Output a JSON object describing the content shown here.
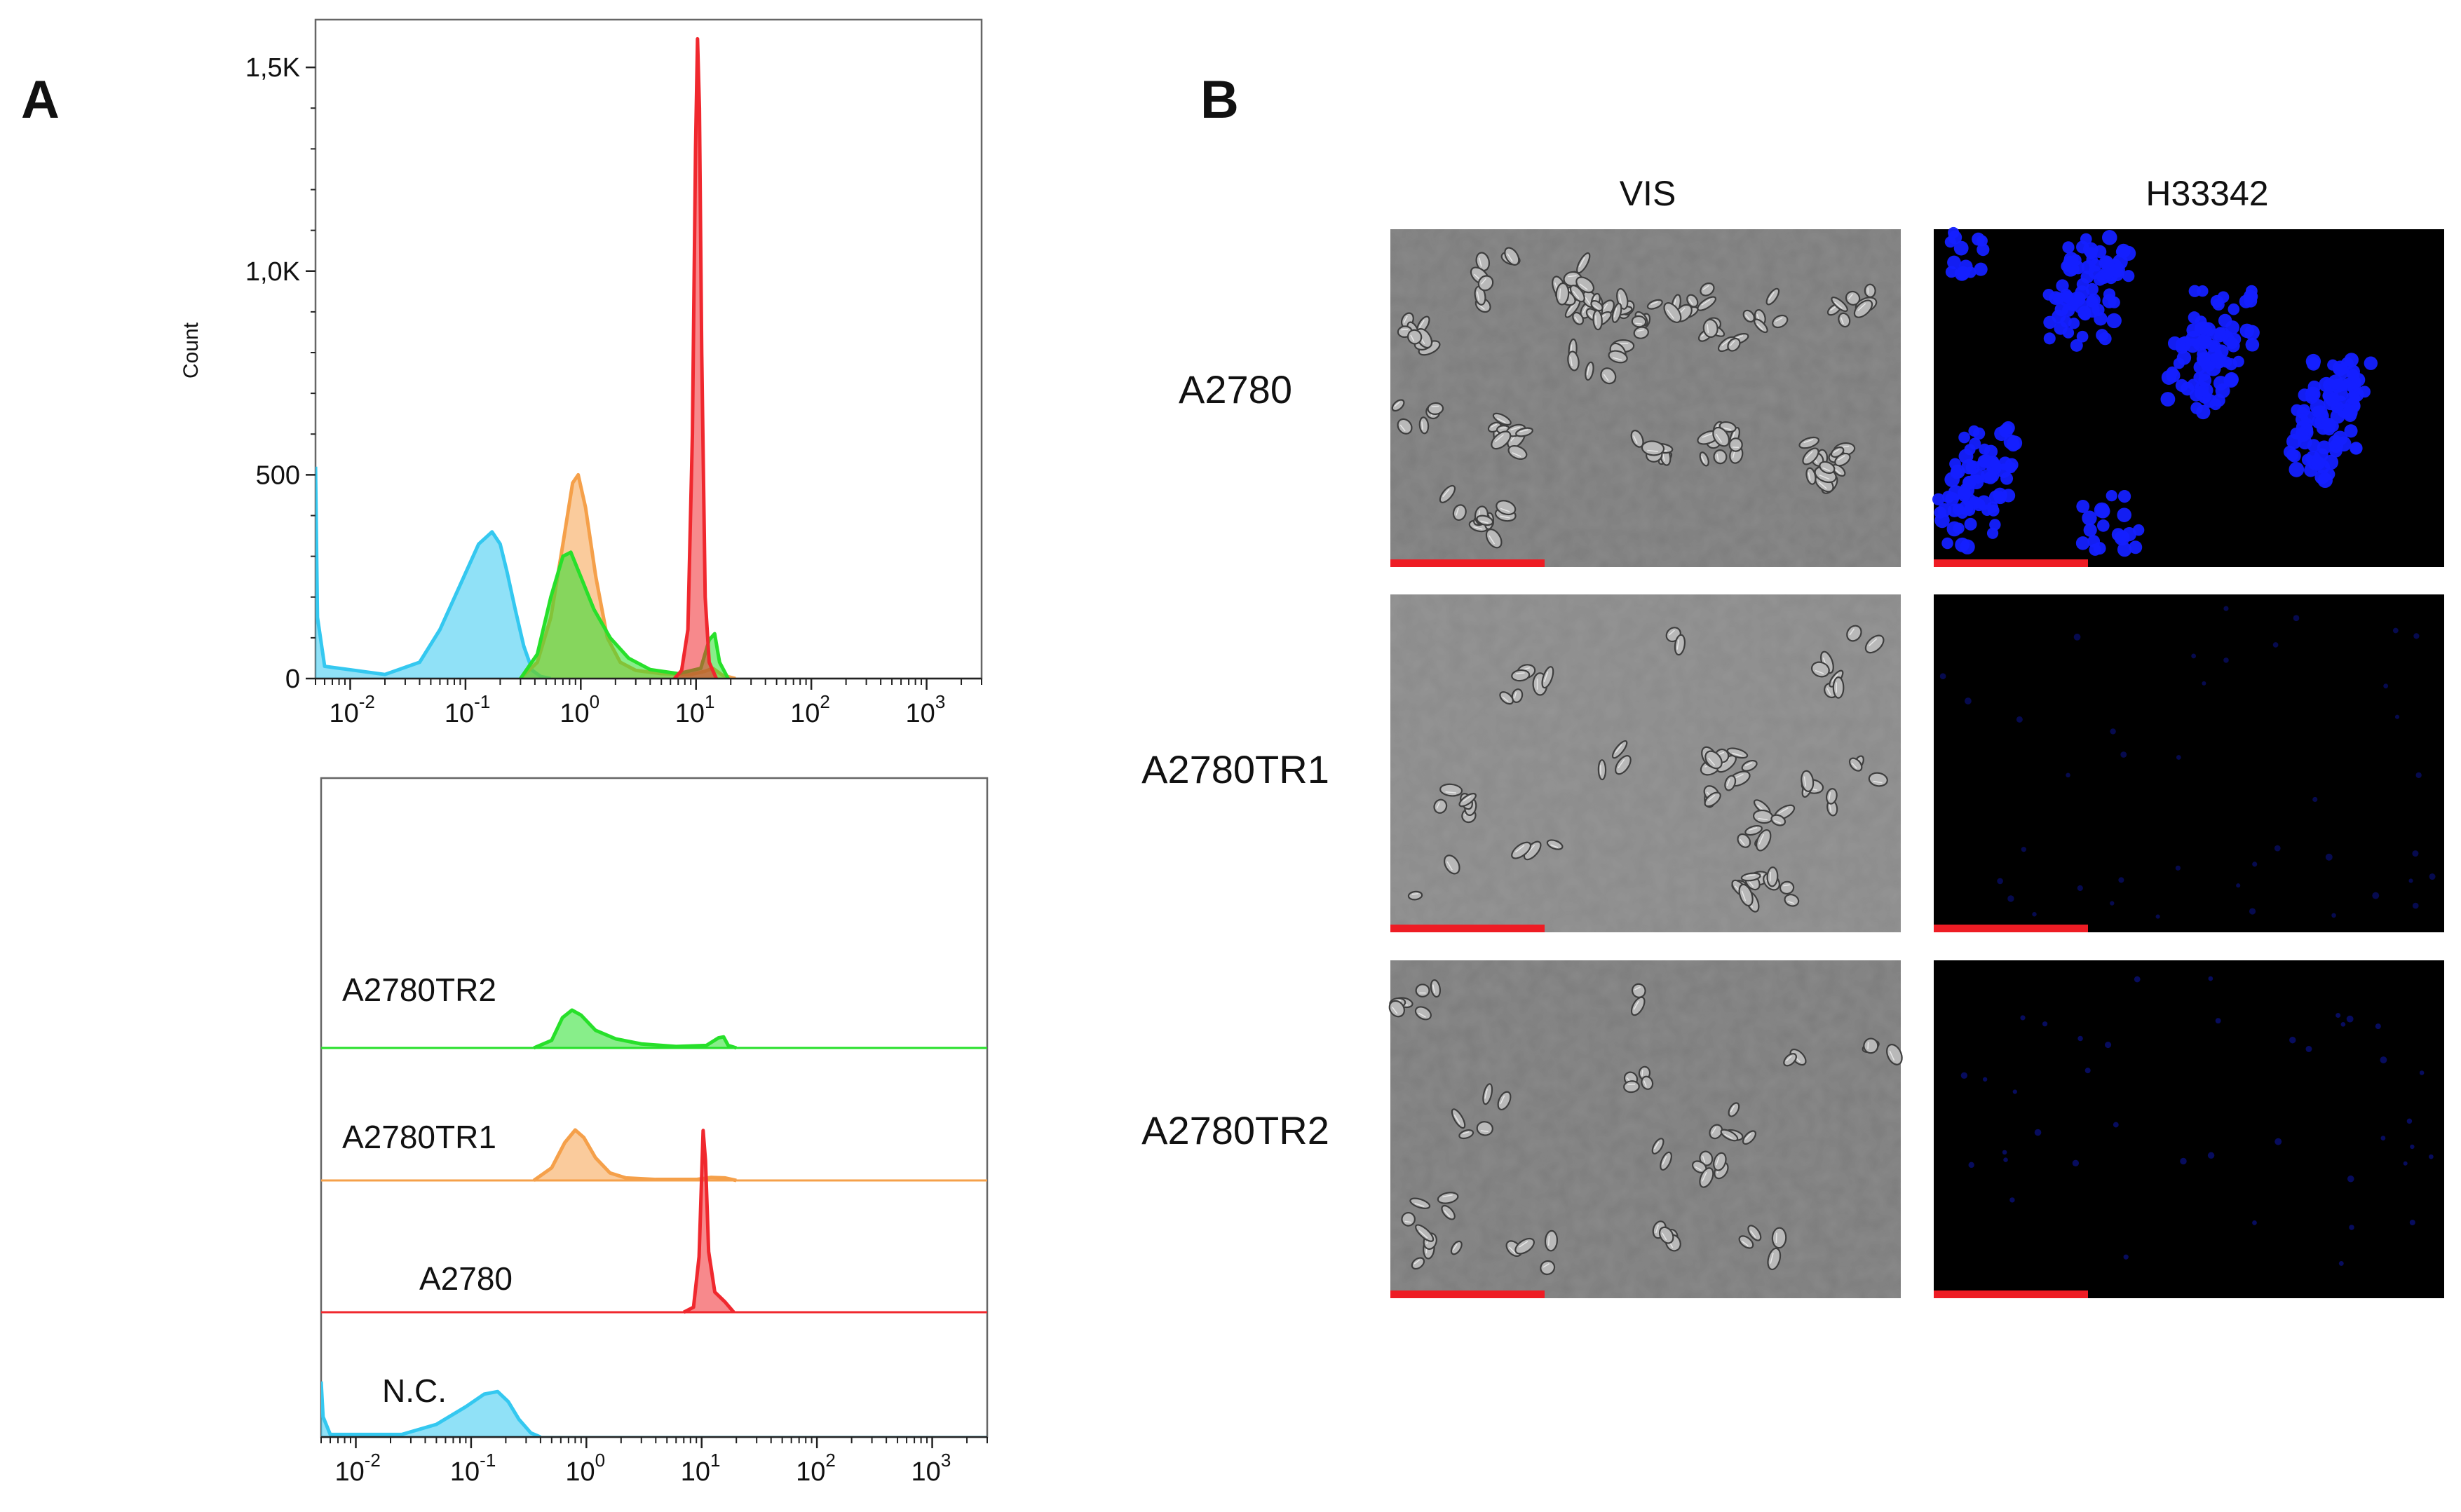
{
  "panels": {
    "a": "A",
    "b": "B"
  },
  "colors": {
    "nc": "#34c8f0",
    "a2780": "#f0282e",
    "tr1": "#f5a04a",
    "tr2": "#27e02a",
    "scale_bar": "#ee1c24",
    "nuclei": "#1420ff"
  },
  "chart_data": [
    {
      "type": "area",
      "ylabel": "Count",
      "xscale": "log",
      "xlim": [
        0.005,
        3000
      ],
      "ylim": [
        0,
        1600
      ],
      "y_ticks": [
        {
          "value": 0,
          "label": "0"
        },
        {
          "value": 500,
          "label": "500"
        },
        {
          "value": 1000,
          "label": "1,0K"
        },
        {
          "value": 1500,
          "label": "1,5K"
        }
      ],
      "x_ticks": [
        {
          "value": 0.01,
          "base": "10",
          "exp": "-2"
        },
        {
          "value": 0.1,
          "base": "10",
          "exp": "-1"
        },
        {
          "value": 1,
          "base": "10",
          "exp": "0"
        },
        {
          "value": 10,
          "base": "10",
          "exp": "1"
        },
        {
          "value": 100,
          "base": "10",
          "exp": "2"
        },
        {
          "value": 1000,
          "base": "10",
          "exp": "3"
        }
      ],
      "series": [
        {
          "key": "nc",
          "color": "#34c8f0",
          "values": [
            [
              0.005,
              520
            ],
            [
              0.0052,
              150
            ],
            [
              0.006,
              30
            ],
            [
              0.02,
              10
            ],
            [
              0.04,
              40
            ],
            [
              0.06,
              120
            ],
            [
              0.09,
              230
            ],
            [
              0.13,
              330
            ],
            [
              0.17,
              360
            ],
            [
              0.2,
              330
            ],
            [
              0.23,
              260
            ],
            [
              0.27,
              170
            ],
            [
              0.32,
              80
            ],
            [
              0.38,
              20
            ],
            [
              0.45,
              5
            ],
            [
              0.55,
              0
            ]
          ]
        },
        {
          "key": "tr1",
          "color": "#f5a04a",
          "values": [
            [
              0.3,
              0
            ],
            [
              0.42,
              40
            ],
            [
              0.55,
              150
            ],
            [
              0.7,
              330
            ],
            [
              0.85,
              480
            ],
            [
              0.95,
              500
            ],
            [
              1.1,
              420
            ],
            [
              1.35,
              250
            ],
            [
              1.7,
              100
            ],
            [
              2.2,
              40
            ],
            [
              3,
              20
            ],
            [
              5,
              12
            ],
            [
              9,
              10
            ],
            [
              12,
              18
            ],
            [
              14,
              25
            ],
            [
              17,
              8
            ],
            [
              22,
              0
            ]
          ]
        },
        {
          "key": "tr2",
          "color": "#27e02a",
          "values": [
            [
              0.3,
              0
            ],
            [
              0.42,
              60
            ],
            [
              0.55,
              200
            ],
            [
              0.7,
              300
            ],
            [
              0.82,
              310
            ],
            [
              1.0,
              250
            ],
            [
              1.3,
              170
            ],
            [
              1.8,
              100
            ],
            [
              2.6,
              50
            ],
            [
              4,
              22
            ],
            [
              7,
              12
            ],
            [
              11,
              25
            ],
            [
              13,
              95
            ],
            [
              14.5,
              110
            ],
            [
              16,
              40
            ],
            [
              19,
              0
            ]
          ]
        },
        {
          "key": "a2780",
          "color": "#f0282e",
          "values": [
            [
              6.5,
              0
            ],
            [
              7.5,
              20
            ],
            [
              8.5,
              120
            ],
            [
              9.3,
              600
            ],
            [
              9.9,
              1300
            ],
            [
              10.3,
              1570
            ],
            [
              10.7,
              1400
            ],
            [
              11.2,
              800
            ],
            [
              12,
              200
            ],
            [
              13,
              40
            ],
            [
              15,
              0
            ]
          ]
        }
      ]
    },
    {
      "type": "area",
      "xscale": "log",
      "xlim": [
        0.005,
        3000
      ],
      "x_ticks": [
        {
          "value": 0.01,
          "base": "10",
          "exp": "-2"
        },
        {
          "value": 0.1,
          "base": "10",
          "exp": "-1"
        },
        {
          "value": 1,
          "base": "10",
          "exp": "0"
        },
        {
          "value": 10,
          "base": "10",
          "exp": "1"
        },
        {
          "value": 100,
          "base": "10",
          "exp": "2"
        },
        {
          "value": 1000,
          "base": "10",
          "exp": "3"
        }
      ],
      "series": [
        {
          "key": "tr2",
          "name": "A2780TR2",
          "color": "#27e02a",
          "values": [
            [
              0.35,
              0
            ],
            [
              0.5,
              15
            ],
            [
              0.62,
              60
            ],
            [
              0.75,
              75
            ],
            [
              0.9,
              65
            ],
            [
              1.2,
              35
            ],
            [
              1.8,
              18
            ],
            [
              3,
              8
            ],
            [
              6,
              3
            ],
            [
              11,
              5
            ],
            [
              14,
              20
            ],
            [
              15.5,
              22
            ],
            [
              17,
              5
            ],
            [
              20,
              0
            ]
          ]
        },
        {
          "key": "tr1",
          "name": "A2780TR1",
          "color": "#f5a04a",
          "values": [
            [
              0.35,
              0
            ],
            [
              0.5,
              25
            ],
            [
              0.65,
              75
            ],
            [
              0.8,
              100
            ],
            [
              0.95,
              85
            ],
            [
              1.2,
              45
            ],
            [
              1.6,
              15
            ],
            [
              2.2,
              5
            ],
            [
              4,
              2
            ],
            [
              9,
              2
            ],
            [
              12,
              6
            ],
            [
              16,
              5
            ],
            [
              20,
              0
            ]
          ]
        },
        {
          "key": "a2780",
          "name": "A2780",
          "color": "#f0282e",
          "values": [
            [
              7,
              0
            ],
            [
              8.5,
              10
            ],
            [
              9.5,
              110
            ],
            [
              10.3,
              360
            ],
            [
              10.8,
              300
            ],
            [
              11.5,
              120
            ],
            [
              13,
              40
            ],
            [
              16,
              20
            ],
            [
              19,
              0
            ]
          ]
        },
        {
          "key": "nc",
          "name": "N.C.",
          "color": "#34c8f0",
          "values": [
            [
              0.005,
              110
            ],
            [
              0.0052,
              40
            ],
            [
              0.006,
              5
            ],
            [
              0.025,
              5
            ],
            [
              0.05,
              25
            ],
            [
              0.09,
              60
            ],
            [
              0.13,
              85
            ],
            [
              0.17,
              90
            ],
            [
              0.21,
              70
            ],
            [
              0.26,
              35
            ],
            [
              0.33,
              8
            ],
            [
              0.4,
              0
            ]
          ]
        }
      ]
    }
  ],
  "microscopy": {
    "columns": [
      "VIS",
      "H33342"
    ],
    "rows": [
      {
        "label": "A2780",
        "fluor_level": 1.0
      },
      {
        "label": "A2780TR1",
        "fluor_level": 0.06
      },
      {
        "label": "A2780TR2",
        "fluor_level": 0.12
      }
    ]
  }
}
